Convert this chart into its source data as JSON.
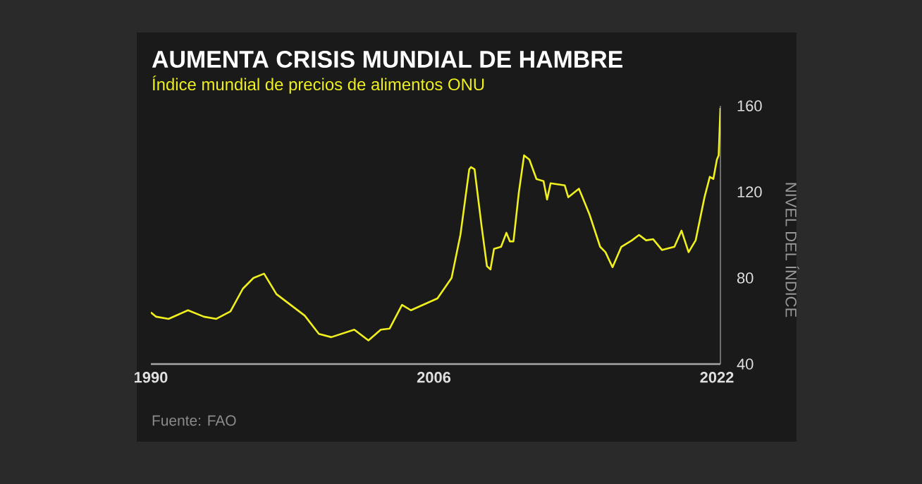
{
  "chart_data": {
    "type": "line",
    "title": "AUMENTA CRISIS MUNDIAL DE HAMBRE",
    "subtitle": "Índice mundial de precios de alimentos ONU",
    "ylabel": "NIVEL DEL ÍNDICE",
    "annotations": [
      "Fuente: FAO"
    ],
    "x": [
      1990.0,
      1990.3,
      1991.0,
      1992.1,
      1993.0,
      1993.7,
      1994.5,
      1995.2,
      1995.8,
      1996.4,
      1997.1,
      1997.9,
      1998.7,
      1999.5,
      2000.2,
      2001.5,
      2002.3,
      2003.0,
      2003.5,
      2004.2,
      2004.7,
      2006.2,
      2007.0,
      2007.5,
      2007.6,
      2008.0,
      2008.1,
      2008.3,
      2008.7,
      2009.0,
      2009.2,
      2009.4,
      2009.8,
      2010.1,
      2010.3,
      2010.5,
      2010.8,
      2011.1,
      2011.4,
      2011.8,
      2012.2,
      2012.4,
      2012.6,
      2013.4,
      2013.6,
      2014.2,
      2014.4,
      2014.8,
      2015.4,
      2015.7,
      2016.1,
      2016.6,
      2017.2,
      2017.6,
      2018.0,
      2018.4,
      2018.9,
      2019.6,
      2020.0,
      2020.4,
      2020.8,
      2021.3,
      2021.6,
      2021.8,
      2022.0,
      2022.1,
      2022.2
    ],
    "series": [
      {
        "color": "#f0f01e",
        "values": [
          64,
          62,
          61,
          65,
          62,
          61,
          64.5,
          75,
          80,
          82,
          72.5,
          67.5,
          62.5,
          54,
          52.5,
          56,
          51,
          56,
          56.5,
          67.5,
          65,
          70.5,
          80,
          100,
          106,
          130.5,
          131.5,
          130.5,
          104,
          85.5,
          84,
          93.5,
          94.5,
          101,
          97,
          97,
          119.5,
          137,
          135,
          126,
          125,
          116.5,
          124,
          123,
          117.5,
          121.5,
          117.5,
          109.5,
          94.5,
          92,
          85,
          94.5,
          97.5,
          100,
          97.5,
          98,
          93,
          94.5,
          102,
          92,
          97.5,
          117.5,
          127,
          126,
          135,
          137,
          159
        ]
      }
    ],
    "xlim": [
      1990,
      2022.2
    ],
    "ylim": [
      40,
      160
    ],
    "xticks": [
      1990,
      2006,
      2022
    ],
    "yticks": [
      40,
      80,
      120,
      160
    ],
    "line_style": "solid",
    "marker": "none"
  }
}
